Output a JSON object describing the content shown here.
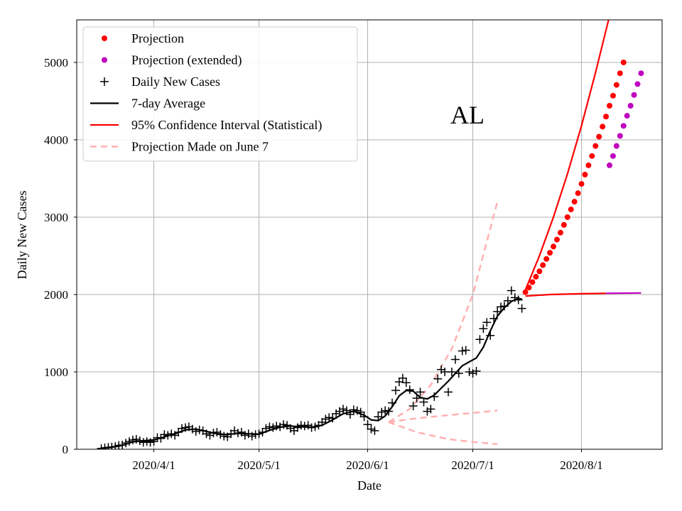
{
  "chart_data": {
    "type": "line",
    "annotation": "AL",
    "xlabel": "Date",
    "ylabel": "Daily New Cases",
    "x_axis": {
      "kind": "date",
      "range": [
        "2020-03-10",
        "2020-08-24"
      ]
    },
    "ylim": [
      0,
      5550
    ],
    "x_ticks": [
      {
        "date": "2020-04-01",
        "label": "2020/4/1"
      },
      {
        "date": "2020-05-01",
        "label": "2020/5/1"
      },
      {
        "date": "2020-06-01",
        "label": "2020/6/1"
      },
      {
        "date": "2020-07-01",
        "label": "2020/7/1"
      },
      {
        "date": "2020-08-01",
        "label": "2020/8/1"
      }
    ],
    "y_ticks": [
      {
        "value": 0,
        "label": "0"
      },
      {
        "value": 1000,
        "label": "1000"
      },
      {
        "value": 2000,
        "label": "2000"
      },
      {
        "value": 3000,
        "label": "3000"
      },
      {
        "value": 4000,
        "label": "4000"
      },
      {
        "value": 5000,
        "label": "5000"
      }
    ],
    "grid": true,
    "legend_position": "top-left",
    "legend": [
      {
        "label": "Projection",
        "marker": "dot",
        "color": "#ff0000"
      },
      {
        "label": "Projection (extended)",
        "marker": "dot",
        "color": "#bf00bf"
      },
      {
        "label": "Daily New Cases",
        "marker": "plus",
        "color": "#000000"
      },
      {
        "label": "7-day Average",
        "marker": "line",
        "color": "#000000"
      },
      {
        "label": "95% Confidence Interval (Statistical)",
        "marker": "line",
        "color": "#ff0000"
      },
      {
        "label": "Projection Made on June 7",
        "marker": "dashed",
        "color": "#ffb0b0"
      }
    ],
    "series": [
      {
        "name": "Daily New Cases",
        "style": "plus",
        "color": "#000000",
        "points": [
          [
            "2020-03-17",
            10
          ],
          [
            "2020-03-18",
            20
          ],
          [
            "2020-03-19",
            25
          ],
          [
            "2020-03-20",
            30
          ],
          [
            "2020-03-21",
            35
          ],
          [
            "2020-03-22",
            50
          ],
          [
            "2020-03-23",
            55
          ],
          [
            "2020-03-24",
            80
          ],
          [
            "2020-03-25",
            100
          ],
          [
            "2020-03-26",
            120
          ],
          [
            "2020-03-27",
            130
          ],
          [
            "2020-03-28",
            110
          ],
          [
            "2020-03-29",
            90
          ],
          [
            "2020-03-30",
            100
          ],
          [
            "2020-03-31",
            90
          ],
          [
            "2020-04-01",
            100
          ],
          [
            "2020-04-02",
            150
          ],
          [
            "2020-04-03",
            140
          ],
          [
            "2020-04-04",
            190
          ],
          [
            "2020-04-05",
            180
          ],
          [
            "2020-04-06",
            200
          ],
          [
            "2020-04-07",
            180
          ],
          [
            "2020-04-08",
            220
          ],
          [
            "2020-04-09",
            270
          ],
          [
            "2020-04-10",
            280
          ],
          [
            "2020-04-11",
            290
          ],
          [
            "2020-04-12",
            260
          ],
          [
            "2020-04-13",
            230
          ],
          [
            "2020-04-14",
            250
          ],
          [
            "2020-04-15",
            240
          ],
          [
            "2020-04-16",
            200
          ],
          [
            "2020-04-17",
            180
          ],
          [
            "2020-04-18",
            210
          ],
          [
            "2020-04-19",
            220
          ],
          [
            "2020-04-20",
            190
          ],
          [
            "2020-04-21",
            170
          ],
          [
            "2020-04-22",
            160
          ],
          [
            "2020-04-23",
            200
          ],
          [
            "2020-04-24",
            240
          ],
          [
            "2020-04-25",
            210
          ],
          [
            "2020-04-26",
            220
          ],
          [
            "2020-04-27",
            180
          ],
          [
            "2020-04-28",
            200
          ],
          [
            "2020-04-29",
            170
          ],
          [
            "2020-04-30",
            190
          ],
          [
            "2020-05-01",
            200
          ],
          [
            "2020-05-02",
            220
          ],
          [
            "2020-05-03",
            270
          ],
          [
            "2020-05-04",
            290
          ],
          [
            "2020-05-05",
            280
          ],
          [
            "2020-05-06",
            300
          ],
          [
            "2020-05-07",
            290
          ],
          [
            "2020-05-08",
            320
          ],
          [
            "2020-05-09",
            310
          ],
          [
            "2020-05-10",
            270
          ],
          [
            "2020-05-11",
            240
          ],
          [
            "2020-05-12",
            280
          ],
          [
            "2020-05-13",
            310
          ],
          [
            "2020-05-14",
            300
          ],
          [
            "2020-05-15",
            310
          ],
          [
            "2020-05-16",
            280
          ],
          [
            "2020-05-17",
            290
          ],
          [
            "2020-05-18",
            310
          ],
          [
            "2020-05-19",
            350
          ],
          [
            "2020-05-20",
            390
          ],
          [
            "2020-05-21",
            410
          ],
          [
            "2020-05-22",
            400
          ],
          [
            "2020-05-23",
            460
          ],
          [
            "2020-05-24",
            490
          ],
          [
            "2020-05-25",
            520
          ],
          [
            "2020-05-26",
            500
          ],
          [
            "2020-05-27",
            450
          ],
          [
            "2020-05-28",
            510
          ],
          [
            "2020-05-29",
            500
          ],
          [
            "2020-05-30",
            480
          ],
          [
            "2020-05-31",
            420
          ],
          [
            "2020-06-01",
            320
          ],
          [
            "2020-06-02",
            260
          ],
          [
            "2020-06-03",
            240
          ],
          [
            "2020-06-04",
            420
          ],
          [
            "2020-06-05",
            480
          ],
          [
            "2020-06-06",
            500
          ],
          [
            "2020-06-07",
            490
          ],
          [
            "2020-06-08",
            600
          ],
          [
            "2020-06-09",
            760
          ],
          [
            "2020-06-10",
            870
          ],
          [
            "2020-06-11",
            920
          ],
          [
            "2020-06-12",
            860
          ],
          [
            "2020-06-13",
            770
          ],
          [
            "2020-06-14",
            560
          ],
          [
            "2020-06-15",
            660
          ],
          [
            "2020-06-16",
            740
          ],
          [
            "2020-06-17",
            610
          ],
          [
            "2020-06-18",
            490
          ],
          [
            "2020-06-19",
            520
          ],
          [
            "2020-06-20",
            680
          ],
          [
            "2020-06-21",
            910
          ],
          [
            "2020-06-22",
            1030
          ],
          [
            "2020-06-23",
            1000
          ],
          [
            "2020-06-24",
            740
          ],
          [
            "2020-06-25",
            1000
          ],
          [
            "2020-06-26",
            1160
          ],
          [
            "2020-06-27",
            980
          ],
          [
            "2020-06-28",
            1270
          ],
          [
            "2020-06-29",
            1280
          ],
          [
            "2020-06-30",
            1000
          ],
          [
            "2020-07-01",
            980
          ],
          [
            "2020-07-02",
            1010
          ],
          [
            "2020-07-03",
            1420
          ],
          [
            "2020-07-04",
            1560
          ],
          [
            "2020-07-05",
            1640
          ],
          [
            "2020-07-06",
            1470
          ],
          [
            "2020-07-07",
            1690
          ],
          [
            "2020-07-08",
            1780
          ],
          [
            "2020-07-09",
            1840
          ],
          [
            "2020-07-10",
            1850
          ],
          [
            "2020-07-11",
            1920
          ],
          [
            "2020-07-12",
            2050
          ],
          [
            "2020-07-13",
            1960
          ],
          [
            "2020-07-14",
            1930
          ],
          [
            "2020-07-15",
            1820
          ]
        ]
      },
      {
        "name": "7-day Average",
        "style": "line",
        "color": "#000000",
        "points": [
          [
            "2020-03-17",
            10
          ],
          [
            "2020-03-20",
            25
          ],
          [
            "2020-03-23",
            50
          ],
          [
            "2020-03-26",
            95
          ],
          [
            "2020-03-29",
            110
          ],
          [
            "2020-04-01",
            120
          ],
          [
            "2020-04-04",
            160
          ],
          [
            "2020-04-07",
            200
          ],
          [
            "2020-04-10",
            250
          ],
          [
            "2020-04-13",
            260
          ],
          [
            "2020-04-16",
            230
          ],
          [
            "2020-04-19",
            200
          ],
          [
            "2020-04-22",
            190
          ],
          [
            "2020-04-25",
            205
          ],
          [
            "2020-04-28",
            200
          ],
          [
            "2020-05-01",
            195
          ],
          [
            "2020-05-04",
            245
          ],
          [
            "2020-05-07",
            285
          ],
          [
            "2020-05-10",
            300
          ],
          [
            "2020-05-13",
            290
          ],
          [
            "2020-05-16",
            285
          ],
          [
            "2020-05-19",
            310
          ],
          [
            "2020-05-22",
            380
          ],
          [
            "2020-05-25",
            460
          ],
          [
            "2020-05-28",
            490
          ],
          [
            "2020-05-31",
            440
          ],
          [
            "2020-06-02",
            380
          ],
          [
            "2020-06-04",
            370
          ],
          [
            "2020-06-06",
            430
          ],
          [
            "2020-06-08",
            550
          ],
          [
            "2020-06-10",
            690
          ],
          [
            "2020-06-12",
            760
          ],
          [
            "2020-06-14",
            750
          ],
          [
            "2020-06-16",
            670
          ],
          [
            "2020-06-18",
            650
          ],
          [
            "2020-06-20",
            700
          ],
          [
            "2020-06-22",
            790
          ],
          [
            "2020-06-24",
            880
          ],
          [
            "2020-06-26",
            980
          ],
          [
            "2020-06-28",
            1080
          ],
          [
            "2020-06-30",
            1130
          ],
          [
            "2020-07-02",
            1180
          ],
          [
            "2020-07-04",
            1320
          ],
          [
            "2020-07-06",
            1530
          ],
          [
            "2020-07-08",
            1720
          ],
          [
            "2020-07-10",
            1830
          ],
          [
            "2020-07-12",
            1910
          ],
          [
            "2020-07-14",
            1950
          ],
          [
            "2020-07-15",
            1940
          ]
        ]
      },
      {
        "name": "Projection",
        "style": "dot",
        "color": "#ff0000",
        "points": [
          [
            "2020-07-16",
            2030
          ],
          [
            "2020-07-17",
            2090
          ],
          [
            "2020-07-18",
            2160
          ],
          [
            "2020-07-19",
            2230
          ],
          [
            "2020-07-20",
            2300
          ],
          [
            "2020-07-21",
            2380
          ],
          [
            "2020-07-22",
            2460
          ],
          [
            "2020-07-23",
            2540
          ],
          [
            "2020-07-24",
            2620
          ],
          [
            "2020-07-25",
            2710
          ],
          [
            "2020-07-26",
            2800
          ],
          [
            "2020-07-27",
            2900
          ],
          [
            "2020-07-28",
            3000
          ],
          [
            "2020-07-29",
            3100
          ],
          [
            "2020-07-30",
            3200
          ],
          [
            "2020-07-31",
            3310
          ],
          [
            "2020-08-01",
            3430
          ],
          [
            "2020-08-02",
            3550
          ],
          [
            "2020-08-03",
            3670
          ],
          [
            "2020-08-04",
            3790
          ],
          [
            "2020-08-05",
            3920
          ],
          [
            "2020-08-06",
            4040
          ],
          [
            "2020-08-07",
            4170
          ],
          [
            "2020-08-08",
            4300
          ],
          [
            "2020-08-09",
            4440
          ],
          [
            "2020-08-10",
            4570
          ],
          [
            "2020-08-11",
            4710
          ],
          [
            "2020-08-12",
            4860
          ],
          [
            "2020-08-13",
            5000
          ]
        ]
      },
      {
        "name": "Projection (extended)",
        "style": "dot",
        "color": "#bf00bf",
        "points": [
          [
            "2020-08-09",
            3670
          ],
          [
            "2020-08-10",
            3790
          ],
          [
            "2020-08-11",
            3920
          ],
          [
            "2020-08-12",
            4050
          ],
          [
            "2020-08-13",
            4180
          ],
          [
            "2020-08-14",
            4310
          ],
          [
            "2020-08-15",
            4440
          ],
          [
            "2020-08-16",
            4580
          ],
          [
            "2020-08-17",
            4720
          ],
          [
            "2020-08-18",
            4860
          ]
        ]
      },
      {
        "name": "95% Confidence Interval (Statistical)",
        "style": "line",
        "color": "#ff0000",
        "bounds": {
          "upper": [
            [
              "2020-07-16",
              2060
            ],
            [
              "2020-07-20",
              2500
            ],
            [
              "2020-07-24",
              3000
            ],
            [
              "2020-07-28",
              3560
            ],
            [
              "2020-08-01",
              4180
            ],
            [
              "2020-08-05",
              4870
            ],
            [
              "2020-08-09",
              5600
            ]
          ],
          "lower": [
            [
              "2020-07-16",
              1980
            ],
            [
              "2020-07-23",
              2000
            ],
            [
              "2020-08-01",
              2010
            ],
            [
              "2020-08-08",
              2015
            ]
          ],
          "lower_extended": [
            [
              "2020-08-08",
              2015
            ],
            [
              "2020-08-18",
              2020
            ]
          ]
        }
      },
      {
        "name": "Projection Made on June 7",
        "style": "dashed",
        "color": "#ffb0b0",
        "lines": [
          [
            [
              "2020-06-07",
              350
            ],
            [
              "2020-06-13",
              520
            ],
            [
              "2020-06-19",
              830
            ],
            [
              "2020-06-25",
              1300
            ],
            [
              "2020-07-01",
              2000
            ],
            [
              "2020-07-08",
              3200
            ]
          ],
          [
            [
              "2020-06-07",
              350
            ],
            [
              "2020-06-15",
              400
            ],
            [
              "2020-06-24",
              440
            ],
            [
              "2020-07-01",
              470
            ],
            [
              "2020-07-08",
              500
            ]
          ],
          [
            [
              "2020-06-07",
              350
            ],
            [
              "2020-06-15",
              220
            ],
            [
              "2020-06-24",
              130
            ],
            [
              "2020-07-01",
              95
            ],
            [
              "2020-07-08",
              65
            ]
          ]
        ]
      }
    ]
  }
}
